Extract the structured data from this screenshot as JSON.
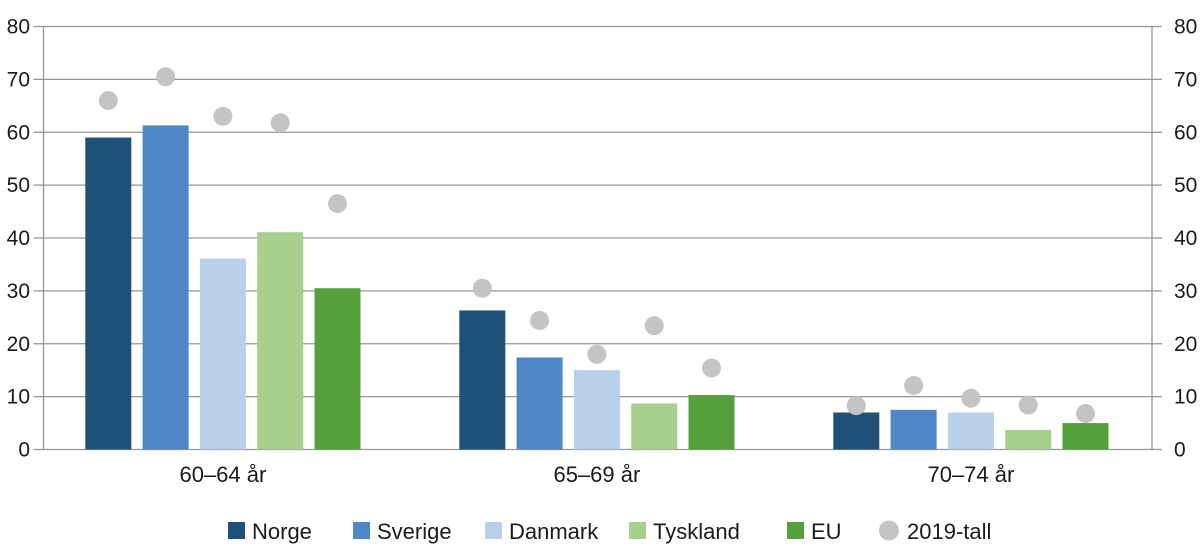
{
  "chart_data": {
    "type": "bar",
    "title": "",
    "xlabel": "",
    "ylabel": "",
    "categories": [
      "60–64 år",
      "65–69 år",
      "70–74 år"
    ],
    "series": [
      {
        "name": "Norge",
        "color": "#1F5078",
        "values": [
          59.0,
          26.3,
          7.0
        ]
      },
      {
        "name": "Sverige",
        "color": "#4E87C8",
        "values": [
          61.3,
          17.4,
          7.5
        ]
      },
      {
        "name": "Danmark",
        "color": "#B8D0EA",
        "values": [
          36.1,
          15.0,
          7.0
        ]
      },
      {
        "name": "Tyskland",
        "color": "#A8D08D",
        "values": [
          41.1,
          8.7,
          3.7
        ]
      },
      {
        "name": "EU",
        "color": "#56A03C",
        "values": [
          30.5,
          10.3,
          5.0
        ]
      }
    ],
    "dot_series": {
      "name": "2019-tall",
      "color": "#C4C4C4",
      "values_by_category": [
        [
          66.0,
          70.5,
          63.0,
          61.8,
          46.5
        ],
        [
          30.5,
          24.4,
          18.0,
          23.4,
          15.4
        ],
        [
          8.3,
          12.1,
          9.7,
          8.4,
          6.8
        ]
      ]
    },
    "ylim": [
      0,
      80
    ],
    "yticks": [
      0,
      10,
      20,
      30,
      40,
      50,
      60,
      70,
      80
    ],
    "y_axis_sides": [
      "left",
      "right"
    ],
    "grid": true,
    "axis_color": "#969696",
    "text_color": "#1A1A1A",
    "legend_position": "bottom"
  }
}
